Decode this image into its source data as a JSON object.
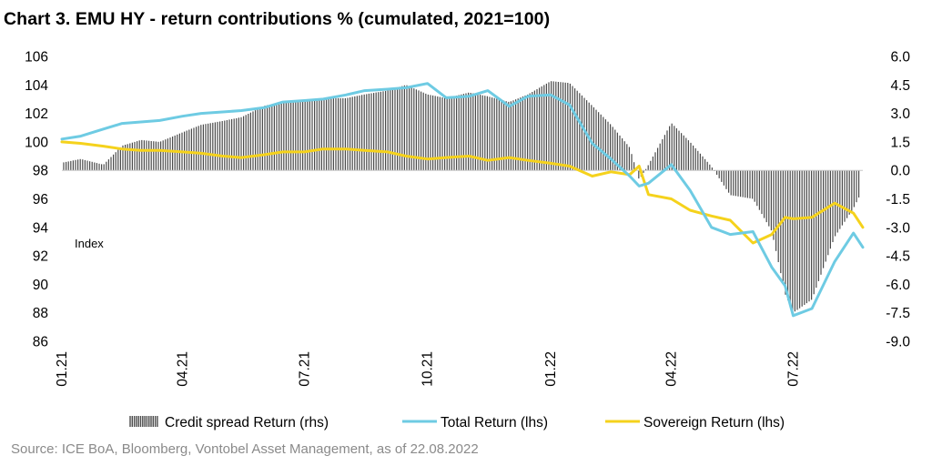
{
  "chart_data": {
    "type": "bar+line",
    "title": "Chart 3. EMU HY - return contributions % (cumulated, 2021=100)",
    "source": "Source: ICE BoA, Bloomberg, Vontobel Asset Management, as of 22.08.2022",
    "annotation": "Index",
    "x_range": [
      "2021-01-01",
      "2022-08-22"
    ],
    "x_ticks": [
      "01.21",
      "04.21",
      "07.21",
      "10.21",
      "01.22",
      "04.22",
      "07.22"
    ],
    "y_left": {
      "ylim": [
        86,
        106
      ],
      "ticks": [
        "106",
        "104",
        "102",
        "100",
        "98",
        "96",
        "94",
        "92",
        "90",
        "88",
        "86"
      ]
    },
    "y_right": {
      "ylim": [
        -9.0,
        6.0
      ],
      "ticks": [
        "6.0",
        "4.5",
        "3.0",
        "1.5",
        "0.0",
        "-1.5",
        "-3.0",
        "-4.5",
        "-6.0",
        "-7.5",
        "-9.0"
      ]
    },
    "legend_position": "bottom",
    "colors": {
      "credit": "#4a4a4a",
      "total": "#6ecbe3",
      "sovereign": "#f5d21c"
    },
    "series": [
      {
        "name": "Credit spread Return (rhs)",
        "type": "bar",
        "axis": "right",
        "x": [
          "2021-01-01",
          "2021-01-15",
          "2021-02-01",
          "2021-02-15",
          "2021-03-01",
          "2021-03-15",
          "2021-04-01",
          "2021-04-15",
          "2021-05-01",
          "2021-05-15",
          "2021-06-01",
          "2021-06-15",
          "2021-07-01",
          "2021-07-15",
          "2021-08-01",
          "2021-08-15",
          "2021-09-01",
          "2021-09-15",
          "2021-10-01",
          "2021-10-15",
          "2021-11-01",
          "2021-11-15",
          "2021-12-01",
          "2021-12-15",
          "2022-01-01",
          "2022-01-15",
          "2022-02-01",
          "2022-02-15",
          "2022-03-01",
          "2022-03-08",
          "2022-03-15",
          "2022-04-01",
          "2022-04-15",
          "2022-05-01",
          "2022-05-15",
          "2022-06-01",
          "2022-06-15",
          "2022-06-25",
          "2022-07-01",
          "2022-07-15",
          "2022-08-01",
          "2022-08-15",
          "2022-08-22"
        ],
        "values": [
          0.4,
          0.6,
          0.3,
          1.3,
          1.6,
          1.5,
          2.0,
          2.4,
          2.6,
          2.8,
          3.4,
          3.6,
          3.7,
          3.8,
          3.8,
          4.0,
          4.2,
          4.5,
          4.0,
          3.8,
          4.1,
          3.9,
          3.6,
          4.0,
          4.7,
          4.6,
          3.4,
          2.4,
          1.2,
          -0.5,
          0.3,
          2.5,
          1.5,
          0.2,
          -1.3,
          -1.5,
          -3.2,
          -6.5,
          -7.5,
          -6.8,
          -3.5,
          -2.0,
          -1.0
        ]
      },
      {
        "name": "Total Return (lhs)",
        "type": "line",
        "axis": "left",
        "x": [
          "2021-01-01",
          "2021-01-15",
          "2021-02-01",
          "2021-02-15",
          "2021-03-01",
          "2021-03-15",
          "2021-04-01",
          "2021-04-15",
          "2021-05-01",
          "2021-05-15",
          "2021-06-01",
          "2021-06-15",
          "2021-07-01",
          "2021-07-15",
          "2021-08-01",
          "2021-08-15",
          "2021-09-01",
          "2021-09-15",
          "2021-10-01",
          "2021-10-15",
          "2021-11-01",
          "2021-11-15",
          "2021-12-01",
          "2021-12-15",
          "2022-01-01",
          "2022-01-15",
          "2022-02-01",
          "2022-02-15",
          "2022-03-01",
          "2022-03-08",
          "2022-03-15",
          "2022-04-01",
          "2022-04-15",
          "2022-05-01",
          "2022-05-15",
          "2022-06-01",
          "2022-06-15",
          "2022-06-25",
          "2022-07-01",
          "2022-07-15",
          "2022-08-01",
          "2022-08-15",
          "2022-08-22"
        ],
        "values": [
          100.2,
          100.4,
          100.9,
          101.3,
          101.4,
          101.5,
          101.8,
          102.0,
          102.1,
          102.2,
          102.4,
          102.8,
          102.9,
          103.0,
          103.3,
          103.6,
          103.7,
          103.8,
          104.1,
          103.1,
          103.2,
          103.6,
          102.5,
          103.2,
          103.3,
          102.6,
          99.9,
          98.8,
          97.6,
          96.9,
          97.1,
          98.4,
          96.6,
          94.0,
          93.5,
          93.7,
          91.2,
          89.9,
          87.8,
          88.3,
          91.6,
          93.6,
          92.6
        ]
      },
      {
        "name": "Sovereign Return (lhs)",
        "type": "line",
        "axis": "left",
        "x": [
          "2021-01-01",
          "2021-01-15",
          "2021-02-01",
          "2021-02-15",
          "2021-03-01",
          "2021-03-15",
          "2021-04-01",
          "2021-04-15",
          "2021-05-01",
          "2021-05-15",
          "2021-06-01",
          "2021-06-15",
          "2021-07-01",
          "2021-07-15",
          "2021-08-01",
          "2021-08-15",
          "2021-09-01",
          "2021-09-15",
          "2021-10-01",
          "2021-10-15",
          "2021-11-01",
          "2021-11-15",
          "2021-12-01",
          "2021-12-15",
          "2022-01-01",
          "2022-01-15",
          "2022-02-01",
          "2022-02-15",
          "2022-03-01",
          "2022-03-08",
          "2022-03-15",
          "2022-04-01",
          "2022-04-15",
          "2022-05-01",
          "2022-05-15",
          "2022-06-01",
          "2022-06-15",
          "2022-06-25",
          "2022-07-01",
          "2022-07-15",
          "2022-08-01",
          "2022-08-15",
          "2022-08-22"
        ],
        "values": [
          100.0,
          99.9,
          99.7,
          99.5,
          99.4,
          99.4,
          99.3,
          99.2,
          99.0,
          98.9,
          99.1,
          99.3,
          99.3,
          99.5,
          99.5,
          99.4,
          99.3,
          99.0,
          98.8,
          98.9,
          99.0,
          98.7,
          98.9,
          98.7,
          98.5,
          98.3,
          97.6,
          97.9,
          97.7,
          98.3,
          96.3,
          96.0,
          95.2,
          94.8,
          94.5,
          92.9,
          93.5,
          94.7,
          94.6,
          94.7,
          95.7,
          95.0,
          94.0
        ]
      }
    ]
  }
}
